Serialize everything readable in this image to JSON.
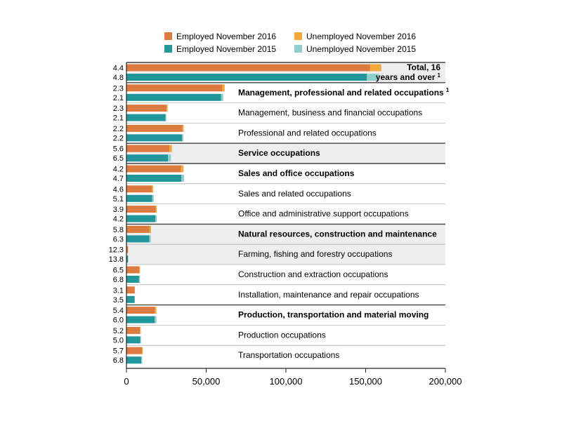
{
  "chart_data": {
    "type": "bar",
    "orientation": "horizontal",
    "stacked": true,
    "legend": {
      "placement": "top",
      "items": [
        {
          "label": "Employed November 2016",
          "color": "#dd7a3f"
        },
        {
          "label": "Unemployed November 2016",
          "color": "#f5a83a"
        },
        {
          "label": "Employed November 2015",
          "color": "#21979c"
        },
        {
          "label": "Unemployed November 2015",
          "color": "#8fd0cf"
        }
      ]
    },
    "series_keys": [
      "emp2016",
      "unemp2016",
      "emp2015",
      "unemp2015"
    ],
    "x_ticks": [
      "0",
      "50,000",
      "100,000",
      "150,000",
      "200,000"
    ],
    "xlim": [
      0,
      200000
    ],
    "categories": [
      {
        "label": "Total, 16 years and over",
        "label_lines": [
          "Total, 16",
          "years and over"
        ],
        "footnote": "1",
        "bold": true,
        "group_start": true,
        "shaded": true,
        "rate2016": "4.4",
        "rate2015": "4.8",
        "emp2016": 152800,
        "unemp2016": 7000,
        "emp2015": 150800,
        "unemp2015": 7600
      },
      {
        "label": "Management, professional and related occupations",
        "footnote": "1",
        "bold": true,
        "group_start": true,
        "shaded": false,
        "rate2016": "2.3",
        "rate2015": "2.1",
        "emp2016": 60200,
        "unemp2016": 1400,
        "emp2015": 59400,
        "unemp2015": 1300
      },
      {
        "label": "Management, business and financial occupations",
        "bold": false,
        "shaded": false,
        "rate2016": "2.3",
        "rate2015": "2.1",
        "emp2016": 25200,
        "unemp2016": 600,
        "emp2015": 24500,
        "unemp2015": 500
      },
      {
        "label": "Professional and related occupations",
        "bold": false,
        "shaded": false,
        "rate2016": "2.2",
        "rate2015": "2.2",
        "emp2016": 35100,
        "unemp2016": 800,
        "emp2015": 34900,
        "unemp2015": 800
      },
      {
        "label": "Service occupations",
        "bold": true,
        "group_start": true,
        "shaded": true,
        "rate2016": "5.6",
        "rate2015": "6.5",
        "emp2016": 26900,
        "unemp2016": 1600,
        "emp2015": 26100,
        "unemp2015": 1800
      },
      {
        "label": "Sales and office occupations",
        "bold": true,
        "group_start": true,
        "shaded": false,
        "rate2016": "4.2",
        "rate2015": "4.7",
        "emp2016": 34300,
        "unemp2016": 1500,
        "emp2015": 34400,
        "unemp2015": 1700
      },
      {
        "label": "Sales and related occupations",
        "bold": false,
        "shaded": false,
        "rate2016": "4.6",
        "rate2015": "5.1",
        "emp2016": 16000,
        "unemp2016": 800,
        "emp2015": 16200,
        "unemp2015": 900
      },
      {
        "label": "Office and administrative support occupations",
        "bold": false,
        "shaded": false,
        "rate2016": "3.9",
        "rate2015": "4.2",
        "emp2016": 18300,
        "unemp2016": 700,
        "emp2015": 18200,
        "unemp2015": 800
      },
      {
        "label": "Natural resources, construction and maintenance",
        "bold": true,
        "group_start": true,
        "shaded": true,
        "rate2016": "5.8",
        "rate2015": "6.3",
        "emp2016": 14500,
        "unemp2016": 900,
        "emp2015": 14300,
        "unemp2015": 1000
      },
      {
        "label": "Farming, fishing and forestry occupations",
        "bold": false,
        "shaded": true,
        "rate2016": "12.3",
        "rate2015": "13.8",
        "emp2016": 1000,
        "unemp2016": 140,
        "emp2015": 1000,
        "unemp2015": 160
      },
      {
        "label": "Construction and extraction occupations",
        "bold": false,
        "shaded": false,
        "rate2016": "6.5",
        "rate2015": "6.8",
        "emp2016": 8000,
        "unemp2016": 550,
        "emp2015": 7900,
        "unemp2015": 580
      },
      {
        "label": "Installation, maintenance and repair occupations",
        "bold": false,
        "shaded": false,
        "rate2016": "3.1",
        "rate2015": "3.5",
        "emp2016": 5200,
        "unemp2016": 170,
        "emp2015": 5100,
        "unemp2015": 190
      },
      {
        "label": "Production, transportation and material moving",
        "bold": true,
        "group_start": true,
        "shaded": false,
        "rate2016": "5.4",
        "rate2015": "6.0",
        "emp2016": 17800,
        "unemp2016": 1000,
        "emp2015": 17700,
        "unemp2015": 1100
      },
      {
        "label": "Production occupations",
        "bold": false,
        "shaded": false,
        "rate2016": "5.2",
        "rate2015": "5.0",
        "emp2016": 8500,
        "unemp2016": 450,
        "emp2015": 8700,
        "unemp2015": 450
      },
      {
        "label": "Transportation occupations",
        "bold": false,
        "shaded": false,
        "rate2016": "5.7",
        "rate2015": "6.8",
        "emp2016": 9700,
        "unemp2016": 600,
        "emp2015": 9300,
        "unemp2015": 650
      }
    ]
  }
}
